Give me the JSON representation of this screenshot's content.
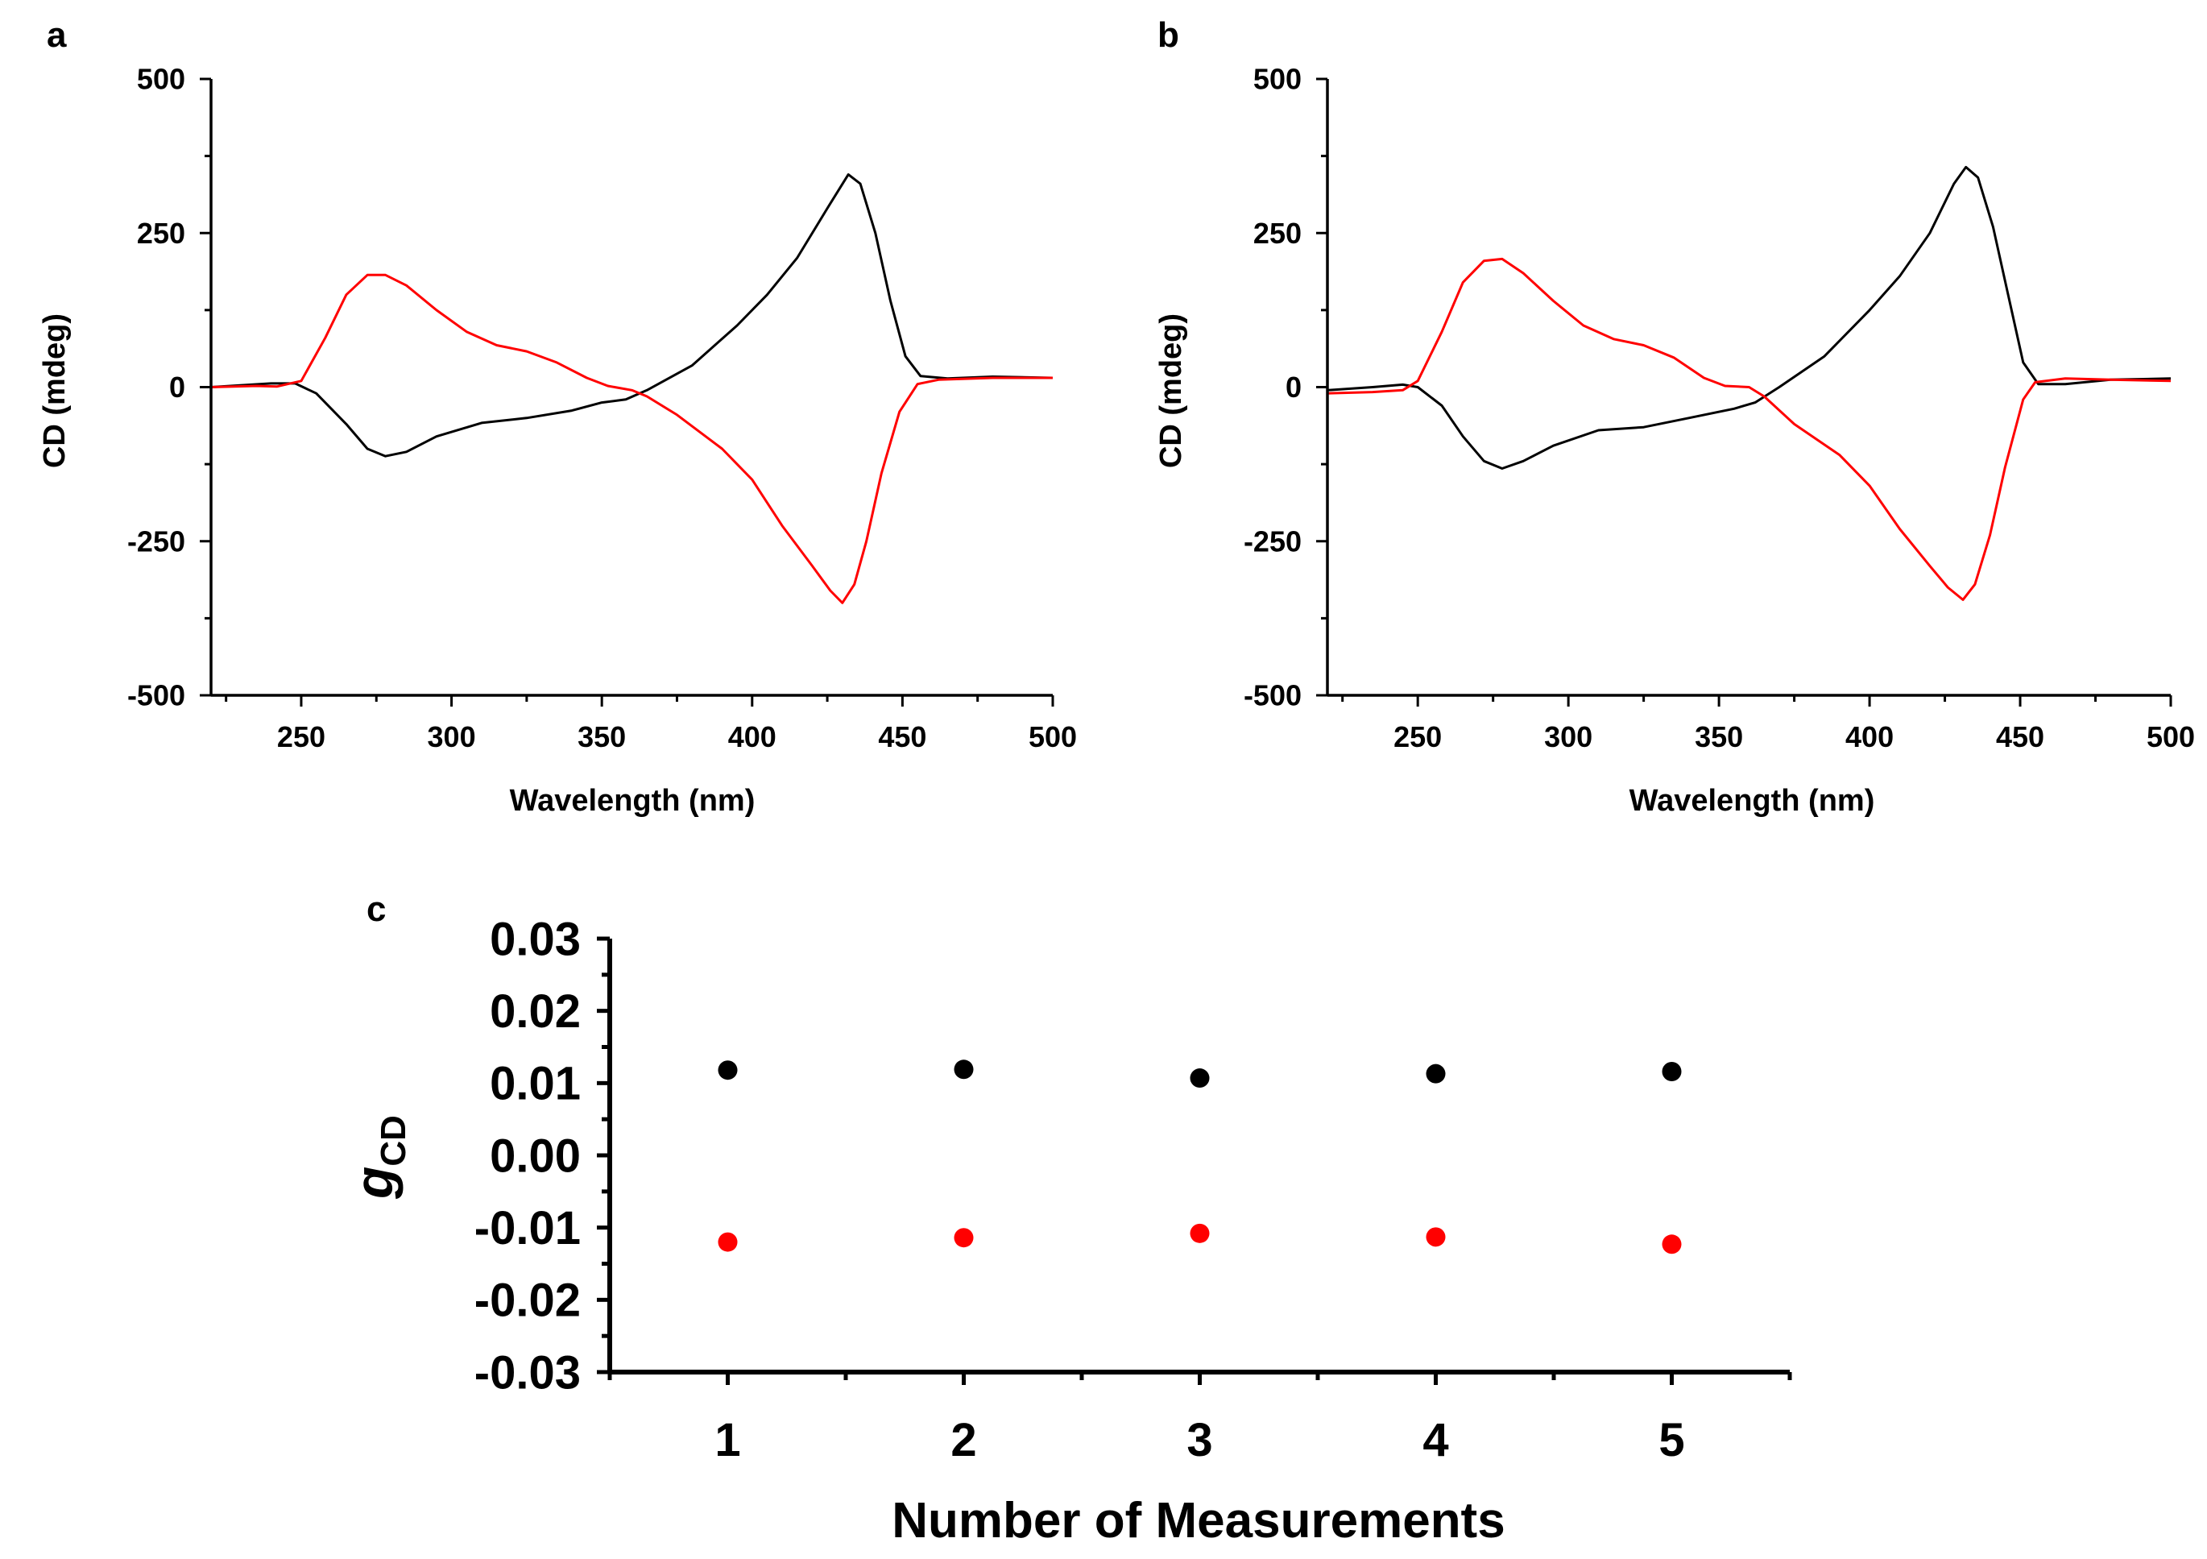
{
  "colors": {
    "series_a": "#000000",
    "series_b": "#ff0000"
  },
  "chart_data": [
    {
      "panel": "a",
      "type": "line",
      "xlabel": "Wavelength (nm)",
      "ylabel": "CD (mdeg)",
      "xlim": [
        220,
        500
      ],
      "ylim": [
        -500,
        500
      ],
      "xticks": [
        250,
        300,
        350,
        400,
        450,
        500
      ],
      "yticks": [
        500,
        250,
        0,
        -250,
        -500
      ],
      "series": [
        {
          "name": "black",
          "color": "#000000",
          "points": [
            [
              220,
              0
            ],
            [
              240,
              6
            ],
            [
              248,
              6
            ],
            [
              255,
              -10
            ],
            [
              265,
              -60
            ],
            [
              272,
              -100
            ],
            [
              278,
              -112
            ],
            [
              285,
              -105
            ],
            [
              295,
              -80
            ],
            [
              310,
              -58
            ],
            [
              325,
              -50
            ],
            [
              340,
              -38
            ],
            [
              350,
              -25
            ],
            [
              358,
              -20
            ],
            [
              365,
              -5
            ],
            [
              380,
              35
            ],
            [
              395,
              100
            ],
            [
              405,
              150
            ],
            [
              415,
              210
            ],
            [
              425,
              290
            ],
            [
              432,
              345
            ],
            [
              436,
              330
            ],
            [
              441,
              250
            ],
            [
              446,
              140
            ],
            [
              451,
              50
            ],
            [
              456,
              18
            ],
            [
              465,
              14
            ],
            [
              480,
              17
            ],
            [
              500,
              15
            ]
          ]
        },
        {
          "name": "red",
          "color": "#ff0000",
          "points": [
            [
              220,
              0
            ],
            [
              235,
              2
            ],
            [
              242,
              1
            ],
            [
              250,
              10
            ],
            [
              258,
              80
            ],
            [
              265,
              150
            ],
            [
              272,
              182
            ],
            [
              278,
              182
            ],
            [
              285,
              165
            ],
            [
              295,
              125
            ],
            [
              305,
              90
            ],
            [
              315,
              68
            ],
            [
              325,
              58
            ],
            [
              335,
              40
            ],
            [
              345,
              15
            ],
            [
              352,
              2
            ],
            [
              360,
              -5
            ],
            [
              365,
              -15
            ],
            [
              375,
              -45
            ],
            [
              390,
              -100
            ],
            [
              400,
              -150
            ],
            [
              410,
              -225
            ],
            [
              420,
              -290
            ],
            [
              426,
              -330
            ],
            [
              430,
              -350
            ],
            [
              434,
              -320
            ],
            [
              438,
              -250
            ],
            [
              443,
              -140
            ],
            [
              449,
              -40
            ],
            [
              455,
              5
            ],
            [
              462,
              12
            ],
            [
              480,
              15
            ],
            [
              500,
              15
            ]
          ]
        }
      ]
    },
    {
      "panel": "b",
      "type": "line",
      "xlabel": "Wavelength (nm)",
      "ylabel": "CD (mdeg)",
      "xlim": [
        220,
        500
      ],
      "ylim": [
        -500,
        500
      ],
      "xticks": [
        250,
        300,
        350,
        400,
        450,
        500
      ],
      "yticks": [
        500,
        250,
        0,
        -250,
        -500
      ],
      "series": [
        {
          "name": "black",
          "color": "#000000",
          "points": [
            [
              220,
              -5
            ],
            [
              235,
              0
            ],
            [
              245,
              4
            ],
            [
              250,
              0
            ],
            [
              258,
              -30
            ],
            [
              265,
              -80
            ],
            [
              272,
              -120
            ],
            [
              278,
              -132
            ],
            [
              285,
              -120
            ],
            [
              295,
              -95
            ],
            [
              310,
              -70
            ],
            [
              325,
              -65
            ],
            [
              340,
              -50
            ],
            [
              355,
              -35
            ],
            [
              362,
              -25
            ],
            [
              370,
              0
            ],
            [
              385,
              50
            ],
            [
              400,
              125
            ],
            [
              410,
              180
            ],
            [
              420,
              250
            ],
            [
              428,
              330
            ],
            [
              432,
              357
            ],
            [
              436,
              340
            ],
            [
              441,
              260
            ],
            [
              446,
              150
            ],
            [
              451,
              40
            ],
            [
              456,
              5
            ],
            [
              465,
              5
            ],
            [
              480,
              12
            ],
            [
              500,
              14
            ]
          ]
        },
        {
          "name": "red",
          "color": "#ff0000",
          "points": [
            [
              220,
              -10
            ],
            [
              235,
              -8
            ],
            [
              245,
              -5
            ],
            [
              250,
              10
            ],
            [
              258,
              90
            ],
            [
              265,
              170
            ],
            [
              272,
              205
            ],
            [
              278,
              208
            ],
            [
              285,
              185
            ],
            [
              295,
              140
            ],
            [
              305,
              100
            ],
            [
              315,
              78
            ],
            [
              325,
              68
            ],
            [
              335,
              48
            ],
            [
              345,
              15
            ],
            [
              352,
              2
            ],
            [
              360,
              0
            ],
            [
              365,
              -15
            ],
            [
              375,
              -60
            ],
            [
              390,
              -110
            ],
            [
              400,
              -160
            ],
            [
              410,
              -230
            ],
            [
              420,
              -290
            ],
            [
              426,
              -325
            ],
            [
              431,
              -345
            ],
            [
              435,
              -320
            ],
            [
              440,
              -240
            ],
            [
              445,
              -130
            ],
            [
              451,
              -20
            ],
            [
              455,
              8
            ],
            [
              465,
              14
            ],
            [
              480,
              12
            ],
            [
              500,
              10
            ]
          ]
        }
      ]
    },
    {
      "panel": "c",
      "type": "scatter",
      "xlabel": "Number of Measurements",
      "ylabel": "g",
      "ylabel_sub": "CD",
      "xlim": [
        0.5,
        5.5
      ],
      "ylim": [
        -0.03,
        0.03
      ],
      "xticks": [
        1,
        2,
        3,
        4,
        5
      ],
      "yticks": [
        "0.03",
        "0.02",
        "0.01",
        "0.00",
        "-0.01",
        "-0.02",
        "-0.03"
      ],
      "series": [
        {
          "name": "black",
          "color": "#000000",
          "x": [
            1,
            2,
            3,
            4,
            5
          ],
          "y": [
            0.0118,
            0.0119,
            0.0107,
            0.0113,
            0.0116
          ]
        },
        {
          "name": "red",
          "color": "#ff0000",
          "x": [
            1,
            2,
            3,
            4,
            5
          ],
          "y": [
            -0.012,
            -0.0114,
            -0.0108,
            -0.0113,
            -0.0123
          ]
        }
      ]
    }
  ]
}
